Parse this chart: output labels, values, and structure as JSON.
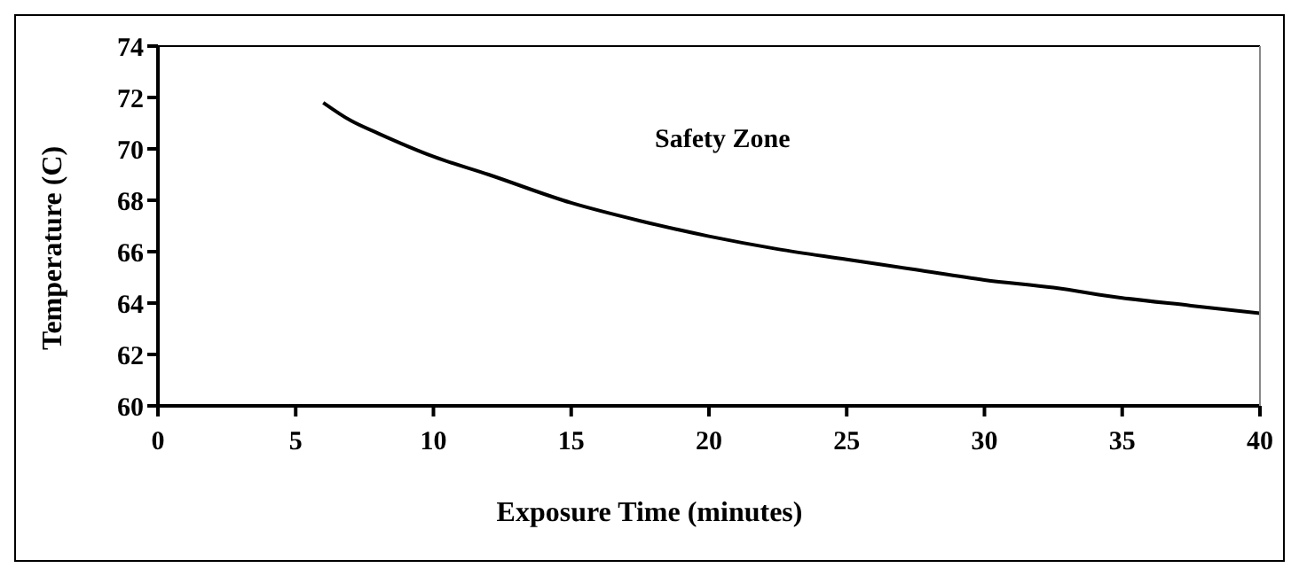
{
  "chart_data": {
    "type": "line",
    "xlabel": "Exposure Time (minutes)",
    "ylabel": "Temperature (C)",
    "x": [
      6,
      7,
      8,
      10,
      12,
      15,
      17.5,
      20,
      22.5,
      25,
      27.5,
      30,
      32.5,
      35,
      37.5,
      40
    ],
    "series": [
      {
        "color": "#000000",
        "values": [
          71.8,
          71.1,
          70.6,
          69.7,
          69,
          67.9,
          67.2,
          66.6,
          66.1,
          65.7,
          65.3,
          64.9,
          64.6,
          64.2,
          63.9,
          63.6
        ]
      }
    ],
    "xlim": [
      0,
      40
    ],
    "xticks": [
      0,
      5,
      10,
      15,
      20,
      25,
      30,
      35,
      40
    ],
    "ylim": [
      60,
      74
    ],
    "yticks": [
      60,
      62,
      64,
      66,
      68,
      70,
      72,
      74
    ],
    "annotations": [
      "Safety Zone"
    ],
    "grid": false,
    "legend": false,
    "marker": "none",
    "line_style": "solid"
  }
}
